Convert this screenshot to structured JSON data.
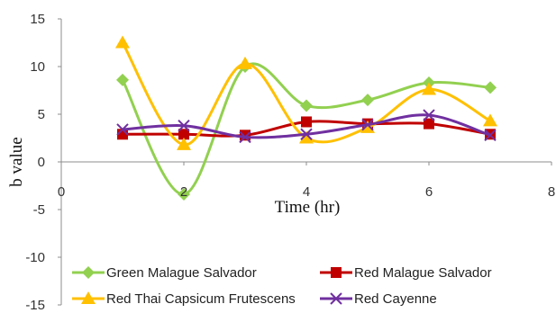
{
  "chart_data": {
    "type": "scatter",
    "xlabel": "Time (hr)",
    "ylabel": "b value",
    "xlim": [
      0,
      8
    ],
    "ylim": [
      -15,
      15
    ],
    "x_ticks": [
      0,
      2,
      4,
      6,
      8
    ],
    "y_ticks": [
      -15,
      -10,
      -5,
      0,
      5,
      10,
      15
    ],
    "grid": false,
    "legend_position": "bottom",
    "smoothed_lines": true,
    "series": [
      {
        "name": "Green Malague Salvador",
        "color": "#92D050",
        "marker": "diamond",
        "x": [
          1,
          2,
          3,
          4,
          5,
          6,
          7
        ],
        "y": [
          8.6,
          -3.4,
          10.0,
          5.9,
          6.5,
          8.3,
          7.8
        ]
      },
      {
        "name": "Red Malague Salvador",
        "color": "#C00000",
        "marker": "square",
        "x": [
          1,
          2,
          3,
          4,
          5,
          6,
          7
        ],
        "y": [
          2.9,
          2.9,
          2.8,
          4.2,
          4.0,
          4.0,
          2.9
        ]
      },
      {
        "name": "Red Thai Capsicum Frutescens",
        "color": "#FFC000",
        "marker": "triangle",
        "x": [
          1,
          2,
          3,
          4,
          5,
          6,
          7
        ],
        "y": [
          12.5,
          1.8,
          10.3,
          2.5,
          3.6,
          7.6,
          4.3
        ]
      },
      {
        "name": "Red Cayenne",
        "color": "#7030A0",
        "marker": "x",
        "x": [
          1,
          2,
          3,
          4,
          5,
          6,
          7
        ],
        "y": [
          3.4,
          3.8,
          2.6,
          2.9,
          3.9,
          4.9,
          2.8
        ]
      }
    ]
  }
}
